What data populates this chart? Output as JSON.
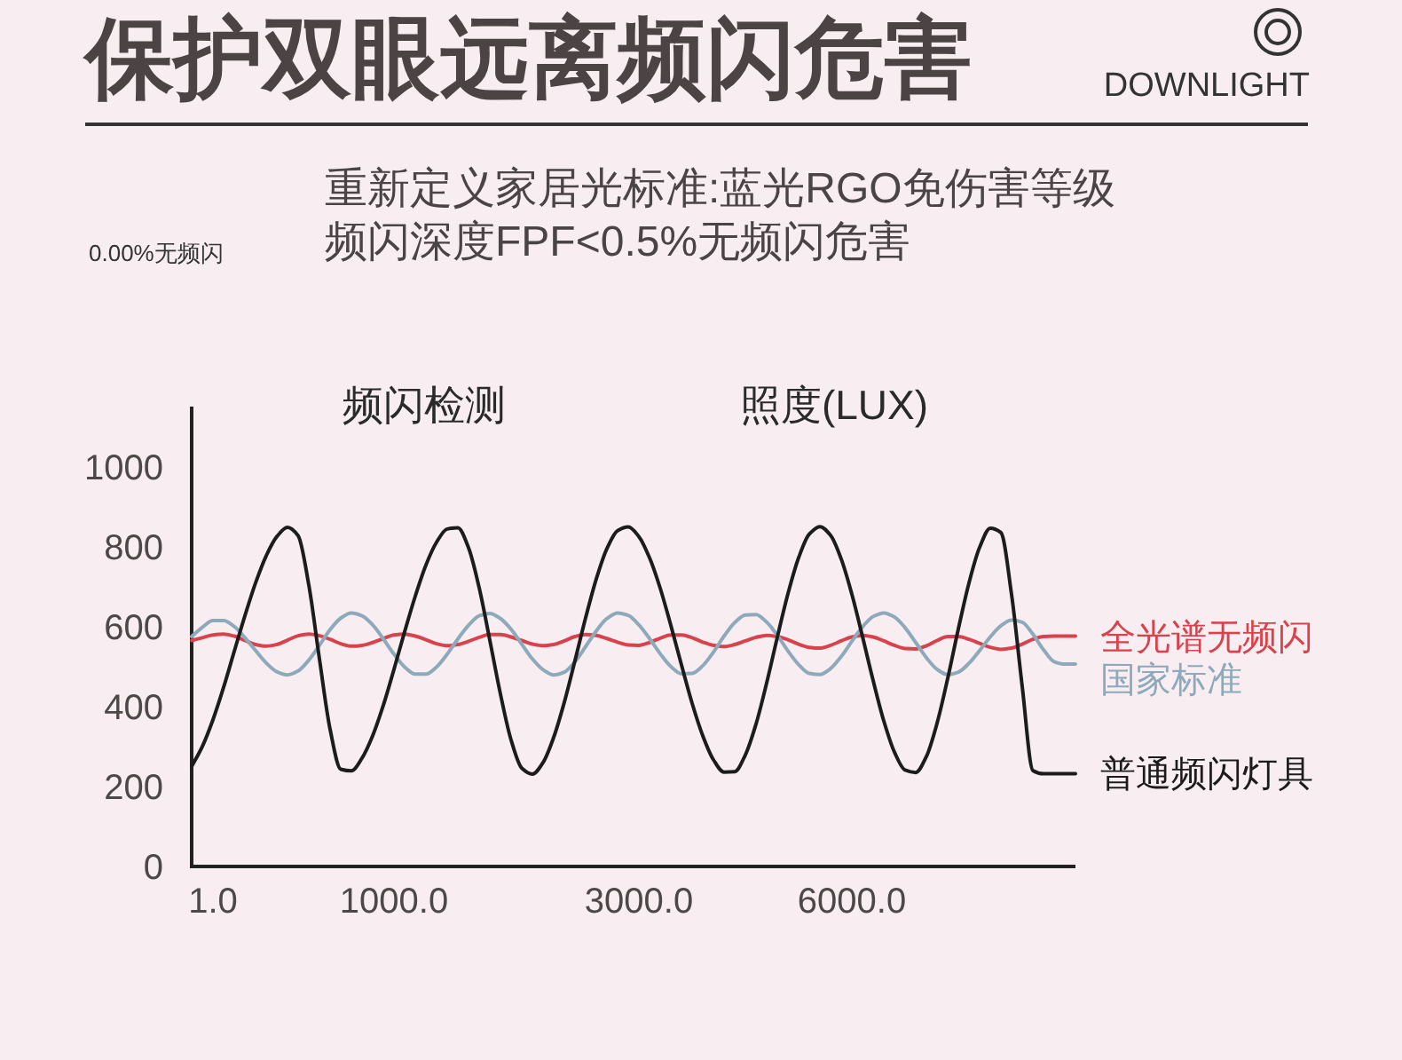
{
  "chart_data": {
    "type": "line",
    "title": "保护双眼远离频闪危害",
    "annotations": [
      "DOWNLIGHT",
      "0.00%无频闪",
      "重新定义家居光标准:蓝光RGO免伤害等级",
      "频闪深度FPF<0.5%无频闪危害",
      "频闪检测",
      "照度(LUX)"
    ],
    "categories": [
      null,
      null,
      "1.0",
      null,
      null,
      null,
      null,
      null,
      null,
      null,
      null,
      null,
      null,
      null,
      null,
      null,
      null,
      null,
      null,
      "1000.0",
      null,
      null,
      null,
      null,
      null,
      null,
      null,
      null,
      null,
      null,
      null,
      null,
      null,
      null,
      null,
      null,
      null,
      null,
      null,
      null,
      null,
      null,
      "3000.0",
      null,
      null,
      null,
      null,
      null,
      null,
      null,
      null,
      null,
      null,
      null,
      null,
      null,
      null,
      null,
      null,
      null,
      null,
      null,
      "6000.0",
      null,
      null,
      null,
      null,
      null,
      null,
      null,
      null,
      null,
      null,
      null,
      null,
      null,
      null,
      null,
      null,
      null,
      null,
      null,
      null,
      null
    ],
    "ylim": [
      0,
      1150
    ],
    "yticks": [
      0,
      200,
      400,
      600,
      800,
      1000
    ],
    "series": [
      {
        "name": "全光谱无频闪",
        "color": "#d8424c",
        "values": [
          565,
          572,
          579,
          581,
          576,
          565,
          555,
          551,
          555,
          566,
          577,
          581,
          577,
          568,
          557,
          551,
          553,
          560,
          570,
          579,
          581,
          576,
          567,
          557,
          552,
          555,
          563,
          573,
          580,
          580,
          574,
          565,
          556,
          552,
          555,
          564,
          575,
          580,
          578,
          570,
          561,
          554,
          553,
          560,
          571,
          579,
          579,
          572,
          561,
          553,
          550,
          555,
          564,
          573,
          578,
          575,
          567,
          556,
          548,
          546,
          553,
          564,
          574,
          578,
          574,
          564,
          553,
          545,
          544,
          552,
          565,
          575,
          575,
          568,
          558,
          548,
          543,
          546,
          556,
          568,
          575,
          576,
          576,
          576
        ]
      },
      {
        "name": "国家标准",
        "color": "#8eaaba",
        "values": [
          575,
          598,
          615,
          615,
          600,
          572,
          540,
          509,
          487,
          479,
          489,
          516,
          553,
          592,
          621,
          634,
          627,
          604,
          569,
          531,
          499,
          481,
          481,
          499,
          531,
          569,
          603,
          627,
          633,
          620,
          593,
          556,
          519,
          492,
          479,
          486,
          512,
          550,
          589,
          620,
          634,
          628,
          604,
          570,
          532,
          500,
          482,
          483,
          502,
          536,
          576,
          610,
          629,
          630,
          611,
          578,
          539,
          505,
          483,
          480,
          495,
          525,
          563,
          599,
          625,
          634,
          624,
          597,
          560,
          522,
          493,
          480,
          486,
          508,
          540,
          574,
          602,
          616,
          611,
          581,
          542,
          512,
          506,
          506
        ]
      },
      {
        "name": "普通频闪灯具",
        "color": "#1c1c1c",
        "values": [
          250,
          300,
          367,
          448,
          538,
          627,
          709,
          777,
          825,
          848,
          827,
          704,
          519,
          343,
          243,
          239,
          271,
          327,
          403,
          493,
          587,
          676,
          754,
          811,
          844,
          847,
          797,
          697,
          566,
          431,
          316,
          246,
          231,
          260,
          323,
          411,
          515,
          622,
          719,
          795,
          840,
          849,
          825,
          772,
          696,
          603,
          504,
          408,
          327,
          267,
          236,
          237,
          279,
          356,
          459,
          573,
          682,
          772,
          831,
          850,
          828,
          769,
          681,
          575,
          465,
          364,
          286,
          241,
          235,
          275,
          358,
          470,
          594,
          709,
          798,
          846,
          835,
          680,
          450,
          240,
          232,
          232,
          232,
          232
        ]
      }
    ]
  }
}
